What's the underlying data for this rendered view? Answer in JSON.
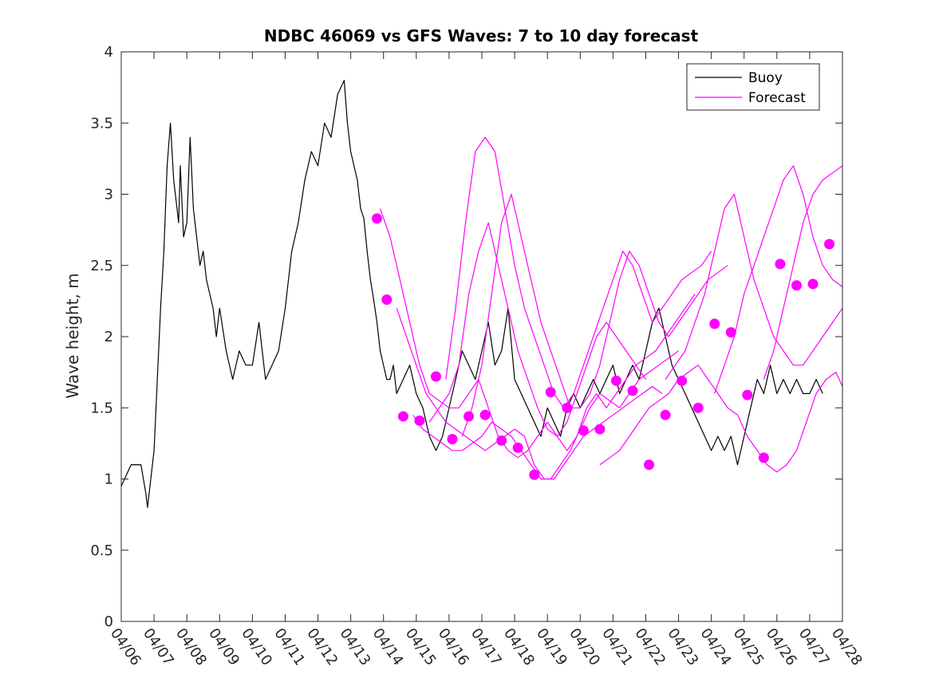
{
  "chart_data": {
    "type": "line",
    "title": "NDBC 46069 vs GFS Waves: 7 to 10 day forecast",
    "ylabel": "Wave height, m",
    "xlabel": "",
    "xlim": [
      0,
      22
    ],
    "ylim": [
      0,
      4
    ],
    "x_ticks": [
      0,
      1,
      2,
      3,
      4,
      5,
      6,
      7,
      8,
      9,
      10,
      11,
      12,
      13,
      14,
      15,
      16,
      17,
      18,
      19,
      20,
      21,
      22
    ],
    "x_tick_labels": [
      "04/06",
      "04/07",
      "04/08",
      "04/09",
      "04/10",
      "04/11",
      "04/12",
      "04/13",
      "04/14",
      "04/15",
      "04/16",
      "04/17",
      "04/18",
      "04/19",
      "04/20",
      "04/21",
      "04/22",
      "04/23",
      "04/24",
      "04/25",
      "04/26",
      "04/27",
      "04/28"
    ],
    "y_ticks": [
      0,
      0.5,
      1,
      1.5,
      2,
      2.5,
      3,
      3.5,
      4
    ],
    "y_tick_labels": [
      "0",
      "0.5",
      "1",
      "1.5",
      "2",
      "2.5",
      "3",
      "3.5",
      "4"
    ],
    "legend_position": "top-right",
    "grid": false,
    "colors": {
      "buoy": "#000000",
      "forecast": "#ff00ff"
    },
    "series": [
      {
        "name": "Buoy",
        "style": "line",
        "x": [
          0,
          0.3,
          0.6,
          0.75,
          0.8,
          0.9,
          1.0,
          1.1,
          1.2,
          1.3,
          1.4,
          1.5,
          1.6,
          1.7,
          1.75,
          1.8,
          1.9,
          2.0,
          2.1,
          2.2,
          2.3,
          2.4,
          2.5,
          2.6,
          2.7,
          2.8,
          2.9,
          3.0,
          3.2,
          3.4,
          3.6,
          3.8,
          4.0,
          4.2,
          4.4,
          4.6,
          4.8,
          5.0,
          5.2,
          5.4,
          5.6,
          5.8,
          6.0,
          6.2,
          6.4,
          6.6,
          6.8,
          6.9,
          7.0,
          7.2,
          7.3,
          7.4,
          7.5,
          7.6,
          7.7,
          7.8,
          7.9,
          8.0,
          8.1,
          8.2,
          8.3,
          8.4,
          8.6,
          8.8,
          9.0,
          9.2,
          9.4,
          9.6,
          9.8,
          10.0,
          10.2,
          10.4,
          10.6,
          10.8,
          11.0,
          11.2,
          11.4,
          11.6,
          11.8,
          12.0,
          12.2,
          12.4,
          12.6,
          12.8,
          13.0,
          13.2,
          13.4,
          13.6,
          13.8,
          14.0,
          14.2,
          14.4,
          14.6,
          14.8,
          15.0,
          15.2,
          15.4,
          15.6,
          15.8,
          16.0,
          16.2,
          16.4,
          16.6,
          16.8,
          17.0,
          17.2,
          17.4,
          17.6,
          17.8,
          18.0,
          18.2,
          18.4,
          18.6,
          18.8,
          19.0,
          19.2,
          19.4,
          19.6,
          19.8,
          20.0,
          20.2,
          20.4,
          20.6,
          20.8,
          21.0,
          21.2,
          21.4
        ],
        "values": [
          0.95,
          1.1,
          1.1,
          0.9,
          0.8,
          1.0,
          1.2,
          1.7,
          2.2,
          2.6,
          3.2,
          3.5,
          3.1,
          2.9,
          2.8,
          3.2,
          2.7,
          2.8,
          3.4,
          2.9,
          2.7,
          2.5,
          2.6,
          2.4,
          2.3,
          2.2,
          2.0,
          2.2,
          1.9,
          1.7,
          1.9,
          1.8,
          1.8,
          2.1,
          1.7,
          1.8,
          1.9,
          2.2,
          2.6,
          2.8,
          3.1,
          3.3,
          3.2,
          3.5,
          3.4,
          3.7,
          3.8,
          3.5,
          3.3,
          3.1,
          2.9,
          2.83,
          2.6,
          2.4,
          2.26,
          2.1,
          1.9,
          1.8,
          1.7,
          1.7,
          1.8,
          1.6,
          1.7,
          1.8,
          1.6,
          1.5,
          1.3,
          1.2,
          1.3,
          1.5,
          1.7,
          1.9,
          1.8,
          1.7,
          1.9,
          2.1,
          1.8,
          1.9,
          2.2,
          1.7,
          1.6,
          1.5,
          1.4,
          1.3,
          1.5,
          1.4,
          1.3,
          1.5,
          1.6,
          1.5,
          1.6,
          1.7,
          1.6,
          1.7,
          1.8,
          1.6,
          1.7,
          1.8,
          1.7,
          1.9,
          2.1,
          2.2,
          2.0,
          1.8,
          1.7,
          1.6,
          1.5,
          1.4,
          1.3,
          1.2,
          1.3,
          1.2,
          1.3,
          1.1,
          1.3,
          1.5,
          1.7,
          1.6,
          1.8,
          1.6,
          1.7,
          1.6,
          1.7,
          1.6,
          1.6,
          1.7,
          1.6
        ]
      },
      {
        "name": "Forecast",
        "style": "line",
        "lines": [
          {
            "x": [
              7.9,
              8.2,
              8.5,
              8.8,
              9.1,
              9.4,
              9.7,
              10.0,
              10.3,
              10.6,
              10.9,
              11.2,
              11.5,
              11.8,
              12.1,
              12.4,
              12.7,
              13.0,
              13.3,
              13.6,
              13.9,
              14.2,
              14.5,
              14.8,
              15.1,
              15.4,
              15.7,
              16.0
            ],
            "values": [
              2.9,
              2.7,
              2.4,
              2.1,
              1.8,
              1.6,
              1.55,
              1.5,
              1.5,
              1.6,
              1.7,
              1.5,
              1.3,
              1.2,
              1.15,
              1.2,
              1.3,
              1.4,
              1.3,
              1.2,
              1.3,
              1.5,
              1.6,
              1.5,
              1.6,
              1.7,
              1.8,
              1.7
            ]
          },
          {
            "x": [
              8.4,
              8.7,
              9.0,
              9.3,
              9.6,
              9.9,
              10.2,
              10.5,
              10.8,
              11.1,
              11.4,
              11.7,
              12.0,
              12.3,
              12.6,
              12.9,
              13.2,
              13.5,
              13.8,
              14.1,
              14.4,
              14.7,
              15.0,
              15.3,
              15.6,
              15.9,
              16.2,
              16.5
            ],
            "values": [
              2.2,
              2.0,
              1.8,
              1.6,
              1.5,
              1.4,
              1.35,
              1.3,
              1.25,
              1.2,
              1.25,
              1.3,
              1.35,
              1.3,
              1.1,
              1.0,
              1.0,
              1.1,
              1.2,
              1.3,
              1.35,
              1.4,
              1.45,
              1.5,
              1.55,
              1.6,
              1.65,
              1.6
            ]
          },
          {
            "x": [
              8.9,
              9.2,
              9.5,
              9.8,
              10.1,
              10.4,
              10.7,
              11.0,
              11.3,
              11.6,
              11.9,
              12.2,
              12.5,
              12.8,
              13.1,
              13.4,
              13.7,
              14.0,
              14.3,
              14.6,
              14.9,
              15.2,
              15.5,
              15.8,
              16.1,
              16.4,
              16.7,
              17.0
            ],
            "values": [
              1.45,
              1.35,
              1.3,
              1.25,
              1.2,
              1.2,
              1.25,
              1.3,
              1.4,
              1.35,
              1.3,
              1.2,
              1.1,
              1.0,
              1.0,
              1.1,
              1.2,
              1.35,
              1.5,
              1.6,
              1.55,
              1.5,
              1.6,
              1.7,
              1.75,
              1.8,
              1.85,
              1.9
            ]
          },
          {
            "x": [
              9.4,
              9.7,
              10.0,
              10.3,
              10.6,
              10.9,
              11.2,
              11.5,
              11.8,
              12.1,
              12.4,
              12.7,
              13.0,
              13.3,
              13.6,
              13.9,
              14.2,
              14.5,
              14.8,
              15.1,
              15.4,
              15.7,
              16.0,
              16.3,
              16.6,
              16.9,
              17.2,
              17.5
            ],
            "values": [
              1.4,
              1.5,
              1.6,
              1.8,
              2.3,
              2.6,
              2.8,
              2.5,
              2.2,
              1.9,
              1.7,
              1.5,
              1.35,
              1.3,
              1.4,
              1.6,
              1.8,
              2.0,
              2.1,
              2.0,
              1.9,
              1.8,
              1.85,
              1.9,
              2.0,
              2.1,
              2.2,
              2.3
            ]
          },
          {
            "x": [
              9.9,
              10.2,
              10.5,
              10.8,
              11.1,
              11.4,
              11.7,
              12.0,
              12.3,
              12.6,
              12.9,
              13.2,
              13.5,
              13.8,
              14.1,
              14.4,
              14.7,
              15.0,
              15.3,
              15.6,
              15.9,
              16.2,
              16.5,
              16.8,
              17.1,
              17.4,
              17.7,
              18.0
            ],
            "values": [
              1.7,
              2.2,
              2.8,
              3.3,
              3.4,
              3.3,
              2.9,
              2.5,
              2.2,
              2.0,
              1.8,
              1.6,
              1.5,
              1.6,
              1.8,
              2.0,
              2.2,
              2.4,
              2.6,
              2.5,
              2.3,
              2.1,
              2.2,
              2.3,
              2.4,
              2.45,
              2.5,
              2.6
            ]
          },
          {
            "x": [
              10.4,
              10.7,
              11.0,
              11.3,
              11.6,
              11.9,
              12.2,
              12.5,
              12.8,
              13.1,
              13.4,
              13.7,
              14.0,
              14.3,
              14.6,
              14.9,
              15.2,
              15.5,
              15.8,
              16.1,
              16.4,
              16.7,
              17.0,
              17.3,
              17.6,
              17.9,
              18.2,
              18.5
            ],
            "values": [
              1.3,
              1.5,
              1.8,
              2.3,
              2.8,
              3.0,
              2.7,
              2.4,
              2.1,
              1.9,
              1.7,
              1.5,
              1.5,
              1.6,
              1.8,
              2.1,
              2.4,
              2.6,
              2.5,
              2.3,
              2.1,
              2.0,
              2.1,
              2.2,
              2.3,
              2.4,
              2.45,
              2.5
            ]
          },
          {
            "x": [
              14.6,
              14.9,
              15.2,
              15.5,
              15.8,
              16.1,
              16.4,
              16.7,
              17.0,
              17.3,
              17.6,
              17.9,
              18.2,
              18.5,
              18.8,
              19.1,
              19.4,
              19.7,
              20.0,
              20.3,
              20.6,
              20.9,
              21.2,
              21.5,
              21.8,
              22.0
            ],
            "values": [
              1.1,
              1.15,
              1.2,
              1.3,
              1.4,
              1.5,
              1.55,
              1.6,
              1.7,
              1.75,
              1.8,
              1.7,
              1.6,
              1.5,
              1.45,
              1.3,
              1.2,
              1.1,
              1.05,
              1.1,
              1.2,
              1.4,
              1.6,
              1.7,
              1.75,
              1.65
            ]
          },
          {
            "x": [
              16.6,
              16.9,
              17.2,
              17.5,
              17.8,
              18.1,
              18.4,
              18.7,
              19.0,
              19.3,
              19.6,
              19.9,
              20.2,
              20.5,
              20.8,
              21.1,
              21.4,
              21.7,
              22.0
            ],
            "values": [
              1.7,
              1.8,
              1.9,
              2.1,
              2.3,
              2.6,
              2.9,
              3.0,
              2.7,
              2.4,
              2.2,
              2.0,
              1.9,
              1.8,
              1.8,
              1.9,
              2.0,
              2.1,
              2.2
            ]
          },
          {
            "x": [
              18.1,
              18.4,
              18.7,
              19.0,
              19.3,
              19.6,
              19.9,
              20.2,
              20.5,
              20.8,
              21.1,
              21.4,
              21.7,
              22.0
            ],
            "values": [
              1.6,
              1.8,
              2.0,
              2.3,
              2.5,
              2.7,
              2.9,
              3.1,
              3.2,
              3.0,
              2.7,
              2.5,
              2.4,
              2.35
            ]
          },
          {
            "x": [
              19.6,
              19.9,
              20.2,
              20.5,
              20.8,
              21.1,
              21.4,
              21.7,
              22.0
            ],
            "values": [
              1.7,
              1.9,
              2.2,
              2.5,
              2.8,
              3.0,
              3.1,
              3.15,
              3.2
            ]
          }
        ]
      },
      {
        "name": "",
        "style": "markers",
        "x": [
          7.8,
          8.1,
          8.6,
          9.1,
          9.6,
          10.1,
          10.6,
          11.1,
          11.6,
          12.1,
          12.6,
          13.1,
          13.6,
          14.1,
          14.6,
          15.1,
          15.6,
          16.1,
          16.6,
          17.1,
          17.6,
          18.1,
          18.6,
          19.1,
          19.6,
          20.1,
          20.6,
          21.1,
          21.6
        ],
        "values": [
          2.83,
          2.26,
          1.44,
          1.41,
          1.72,
          1.28,
          1.44,
          1.45,
          1.27,
          1.22,
          1.03,
          1.61,
          1.5,
          1.34,
          1.35,
          1.69,
          1.62,
          1.1,
          1.45,
          1.69,
          1.5,
          2.09,
          2.03,
          1.59,
          1.15,
          2.51,
          2.36,
          2.37,
          2.65
        ]
      }
    ]
  }
}
